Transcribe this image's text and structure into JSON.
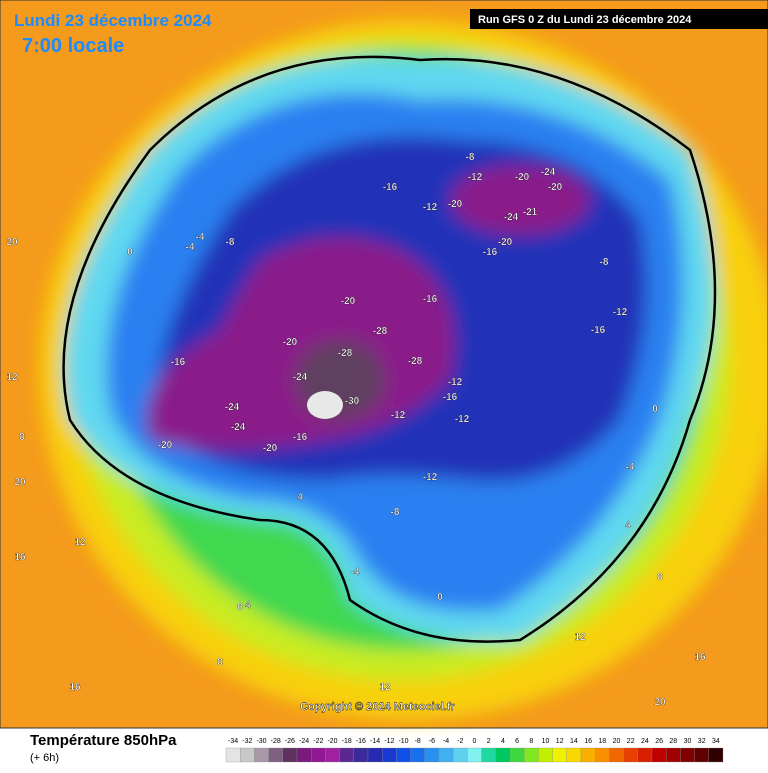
{
  "header": {
    "date": "Lundi 23 décembre 2024",
    "time": "7:00 locale",
    "run": "Run GFS 0 Z du Lundi 23 décembre 2024"
  },
  "map": {
    "copyright": "Copyright © 2024 Meteociel.fr",
    "labels": [
      "-28",
      "-28",
      "-28",
      "-30",
      "-24",
      "-20",
      "-20",
      "-20",
      "-24",
      "-24",
      "-20",
      "-16",
      "-16",
      "-12",
      "-12",
      "-16",
      "-20",
      "-24",
      "-20",
      "-16",
      "-12",
      "-8",
      "-4",
      "0",
      "4",
      "8",
      "12",
      "16",
      "20",
      "-8",
      "-12",
      "-16",
      "-12",
      "-8",
      "-4",
      "0",
      "4",
      "8",
      "12",
      "16",
      "20",
      "12",
      "8",
      "4",
      "-4",
      "-8",
      "-16",
      "-12",
      "-20",
      "16",
      "20",
      "12",
      "8",
      "0",
      "-4",
      "-12",
      "-16",
      "-20",
      "-24",
      "-21"
    ]
  },
  "legend": {
    "title": "Température 850hPa",
    "subtitle": "(+ 6h)",
    "ticks": [
      -34,
      -32,
      -30,
      -28,
      -26,
      -24,
      -22,
      -20,
      -18,
      -16,
      -14,
      -12,
      -10,
      -8,
      -6,
      -4,
      -2,
      0,
      2,
      4,
      6,
      8,
      10,
      12,
      14,
      16,
      18,
      20,
      22,
      24,
      26,
      28,
      30,
      32,
      34
    ],
    "colors": [
      "#e4e4e4",
      "#c8c8c8",
      "#a898a8",
      "#806080",
      "#603060",
      "#7a1a7a",
      "#901890",
      "#a020a0",
      "#5a2890",
      "#3a2a9a",
      "#2828b0",
      "#1a38d0",
      "#1050e8",
      "#1870f0",
      "#2890f0",
      "#40b0f0",
      "#60d0f0",
      "#80f0f0",
      "#20d8a0",
      "#00c860",
      "#40d840",
      "#80e820",
      "#c0f000",
      "#f0f000",
      "#f8d800",
      "#f8b000",
      "#f89000",
      "#f06800",
      "#e84000",
      "#d82000",
      "#c00000",
      "#a00000",
      "#800000",
      "#600000",
      "#300000"
    ]
  }
}
